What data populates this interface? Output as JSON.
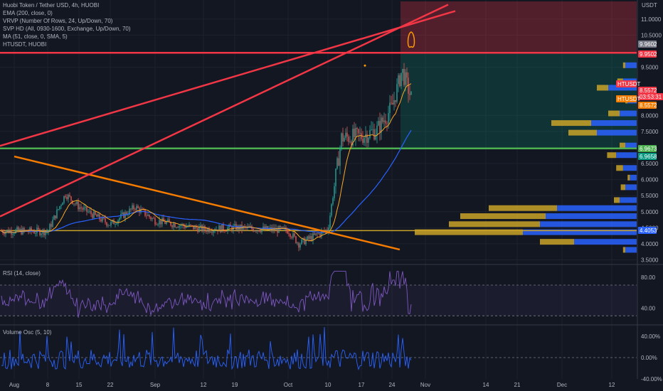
{
  "legend": {
    "title": "Huobi Token / Tether USD, 4h, HUOBI",
    "ema": "EMA (200, close, 0)",
    "vrvp": "VRVP (Number Of Rows, 24, Up/Down, 70)",
    "svp": "SVP HD (All, 0930-1600, Exchange, Up/Down, 70)",
    "ma": "MA (51, close, 0, SMA, 5)",
    "symbol": "HTUSDT, HUOBI"
  },
  "rsi_legend": "RSI (14, close)",
  "vo_legend": "Volume Osc (5, 10)",
  "axis_unit": "USDT",
  "price_axis": [
    "11.0000",
    "10.5000",
    "9.5000",
    "8.0000",
    "7.5000",
    "6.5000",
    "6.0000",
    "5.5000",
    "5.0000",
    "4.5000",
    "4.0000",
    "3.5000"
  ],
  "rsi_axis": [
    "80.00",
    "40.00"
  ],
  "vo_axis": [
    "40.00%",
    "0.00%",
    "-40.00%"
  ],
  "x_axis": [
    "Aug",
    "8",
    "15",
    "22",
    "Sep",
    "12",
    "19",
    "Oct",
    "10",
    "17",
    "24",
    "Nov",
    "14",
    "21",
    "Dec",
    "12"
  ],
  "price_tags": [
    {
      "label": "9.9602",
      "value": 9.9602,
      "color": "#787b86"
    },
    {
      "label": "9.9502",
      "value": 9.9502,
      "color": "#f23645"
    },
    {
      "label": "HTUSDT",
      "value": 8.5572,
      "color": "#f23645"
    },
    {
      "label": "8.5572",
      "value": 8.5572,
      "color": "#f23645"
    },
    {
      "label": "03:53:31",
      "value": 8.5572,
      "color": "#f23645"
    },
    {
      "label": "HTUSDT",
      "value": 8.2,
      "color": "#f57c00"
    },
    {
      "label": "8.5572",
      "value": 8.2,
      "color": "#f57c00"
    },
    {
      "label": "6.9673",
      "value": 6.9673,
      "color": "#4caf50"
    },
    {
      "label": "6.9658",
      "value": 6.9658,
      "color": "#089981"
    },
    {
      "label": "4.4053",
      "value": 4.4053,
      "color": "#2962ff"
    }
  ],
  "colors": {
    "background": "#131722",
    "grid": "#1e222d",
    "up": "#26a69a",
    "down": "#ef5350",
    "resistance": "#f23645",
    "support": "#4caf50",
    "trend": "#f57c00",
    "ema": "#2962ff",
    "ma": "#f9a825",
    "rsi": "#7e57c2",
    "vo": "#2962ff",
    "vp_up": "#2962ff",
    "vp_down": "#c9a227"
  },
  "chart_data": {
    "type": "candlestick",
    "title": "Huobi Token / Tether USD, 4h, HUOBI",
    "price_range": [
      3.4,
      11.55
    ],
    "x_labels": [
      "Aug",
      "8",
      "15",
      "22",
      "Sep",
      "12",
      "19",
      "Oct",
      "10",
      "17",
      "24",
      "Nov",
      "14",
      "21",
      "Dec",
      "12"
    ],
    "close_path": [
      {
        "x": "Aug",
        "y": 4.4
      },
      {
        "x": "8",
        "y": 4.38
      },
      {
        "x": "~10 Aug",
        "y": 5.55
      },
      {
        "x": "15",
        "y": 5.15
      },
      {
        "x": "22",
        "y": 4.6
      },
      {
        "x": "~27 Aug",
        "y": 5.15
      },
      {
        "x": "Sep",
        "y": 4.72
      },
      {
        "x": "12",
        "y": 4.45
      },
      {
        "x": "19",
        "y": 4.5
      },
      {
        "x": "Oct",
        "y": 4.42
      },
      {
        "x": "~5 Oct",
        "y": 4.0
      },
      {
        "x": "10",
        "y": 4.45
      },
      {
        "x": "~13 Oct",
        "y": 7.3
      },
      {
        "x": "17",
        "y": 7.35
      },
      {
        "x": "~21 Oct",
        "y": 7.55
      },
      {
        "x": "24",
        "y": 8.25
      },
      {
        "x": "~26 Oct",
        "y": 9.4
      },
      {
        "x": "~28 Oct",
        "y": 8.55
      }
    ],
    "horizontal_levels": [
      {
        "name": "resistance",
        "value": 9.95
      },
      {
        "name": "support",
        "value": 6.97
      },
      {
        "name": "base",
        "value": 4.41
      }
    ],
    "trend_lines": [
      {
        "name": "descending",
        "from": {
          "x": "Aug",
          "y": 6.72
        },
        "to": {
          "x": "~17 Oct",
          "y": 3.82
        }
      },
      {
        "name": "wedge-upper",
        "from": {
          "x": "~10 Oct",
          "y": 7.05
        },
        "to": {
          "x": "~3 Nov",
          "y": 11.25
        }
      },
      {
        "name": "wedge-lower",
        "from": {
          "x": "~10 Oct",
          "y": 4.85
        },
        "to": {
          "x": "~4 Nov",
          "y": 11.45
        }
      }
    ],
    "rsi": {
      "range": [
        20,
        95
      ],
      "levels": [
        70,
        30
      ],
      "last": 45
    },
    "volume_osc": {
      "range": [
        -40,
        60
      ],
      "last": -5
    },
    "volume_profile": [
      {
        "price": 9.55,
        "up": 0.1,
        "down": 0.02
      },
      {
        "price": 9.05,
        "up": 0.12,
        "down": 0.05
      },
      {
        "price": 8.85,
        "up": 0.25,
        "down": 0.1
      },
      {
        "price": 8.45,
        "up": 0.08,
        "down": 0.02
      },
      {
        "price": 8.05,
        "up": 0.15,
        "down": 0.1
      },
      {
        "price": 7.75,
        "up": 0.4,
        "down": 0.35
      },
      {
        "price": 7.45,
        "up": 0.35,
        "down": 0.25
      },
      {
        "price": 7.05,
        "up": 0.1,
        "down": 0.05
      },
      {
        "price": 6.75,
        "up": 0.18,
        "down": 0.08
      },
      {
        "price": 6.35,
        "up": 0.12,
        "down": 0.06
      },
      {
        "price": 6.05,
        "up": 0.06,
        "down": 0.02
      },
      {
        "price": 5.75,
        "up": 0.1,
        "down": 0.04
      },
      {
        "price": 5.35,
        "up": 0.15,
        "down": 0.05
      },
      {
        "price": 5.1,
        "up": 0.7,
        "down": 0.6
      },
      {
        "price": 4.85,
        "up": 0.8,
        "down": 0.75
      },
      {
        "price": 4.6,
        "up": 0.85,
        "down": 0.8
      },
      {
        "price": 4.35,
        "up": 1.0,
        "down": 0.95
      },
      {
        "price": 4.05,
        "up": 0.55,
        "down": 0.3
      },
      {
        "price": 3.8,
        "up": 0.1,
        "down": 0.02
      }
    ]
  }
}
